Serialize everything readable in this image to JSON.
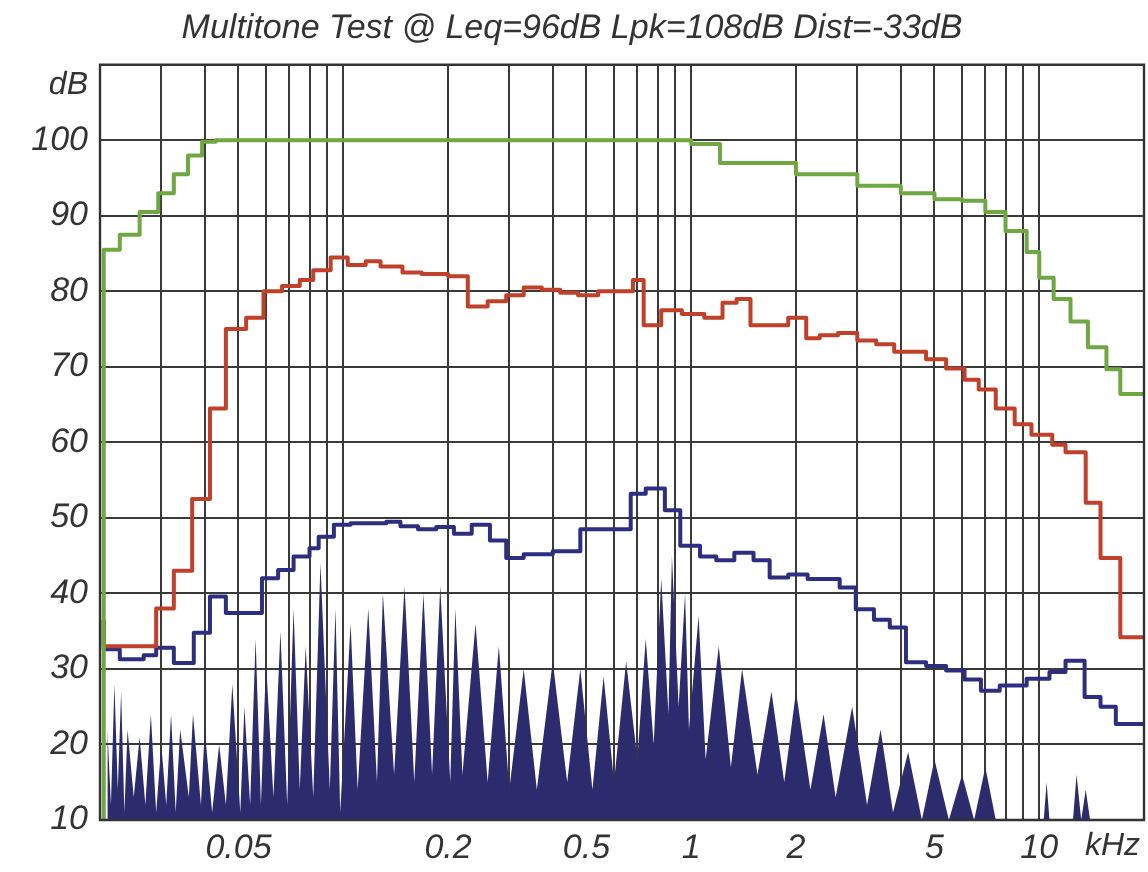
{
  "chart_data": {
    "type": "step",
    "title": "Multitone Test @ Leq=96dB Lpk=108dB Dist=-33dB",
    "xlabel": "kHz",
    "ylabel": "dB",
    "log": "x",
    "grid": true,
    "legend": false,
    "xlim": [
      0.02,
      20
    ],
    "ylim": [
      10,
      110
    ],
    "xticks": [
      {
        "value": 0.03,
        "label": null
      },
      {
        "value": 0.04,
        "label": null
      },
      0.05,
      {
        "value": 0.06,
        "label": null
      },
      {
        "value": 0.07,
        "label": null
      },
      {
        "value": 0.08,
        "label": null
      },
      {
        "value": 0.09,
        "label": null
      },
      {
        "value": 0.1,
        "label": null
      },
      0.2,
      {
        "value": 0.3,
        "label": null
      },
      {
        "value": 0.4,
        "label": null
      },
      0.5,
      {
        "value": 0.6,
        "label": null
      },
      {
        "value": 0.7,
        "label": null
      },
      {
        "value": 0.8,
        "label": null
      },
      {
        "value": 0.9,
        "label": null
      },
      1,
      2,
      {
        "value": 3,
        "label": null
      },
      {
        "value": 4,
        "label": null
      },
      5,
      {
        "value": 6,
        "label": null
      },
      {
        "value": 7,
        "label": null
      },
      {
        "value": 8,
        "label": null
      },
      {
        "value": 9,
        "label": null
      },
      10
    ],
    "yticks": [
      10,
      20,
      30,
      40,
      50,
      60,
      70,
      80,
      90,
      100
    ],
    "series": [
      {
        "color": "#6fa843",
        "x": [
          0.0205,
          0.0205,
          0.0228,
          0.026,
          0.0294,
          0.0326,
          0.0358,
          0.0393,
          0.043,
          0.0492,
          1.0,
          1.21,
          2.0,
          3.0,
          4.0,
          5.0,
          6.0,
          7.0,
          8.0,
          9.2,
          10,
          11,
          12.3,
          13.8,
          15.6,
          17.1,
          19.5,
          20
        ],
        "values": [
          10,
          83,
          85.5,
          87.5,
          90.5,
          93,
          95.5,
          98,
          99.8,
          100,
          100,
          99.5,
          97,
          95.5,
          94,
          93,
          92.2,
          92,
          90.5,
          88,
          85.2,
          81.8,
          79,
          76,
          72.6,
          69.7,
          66.4,
          66.4
        ]
      },
      {
        "color": "#c0402a",
        "x": [
          0.0205,
          0.0228,
          0.029,
          0.0326,
          0.0368,
          0.0414,
          0.046,
          0.0526,
          0.059,
          0.0667,
          0.075,
          0.082,
          0.092,
          0.103,
          0.116,
          0.128,
          0.148,
          0.168,
          0.2,
          0.228,
          0.26,
          0.294,
          0.33,
          0.372,
          0.42,
          0.473,
          0.54,
          0.68,
          0.73,
          0.82,
          0.94,
          1.09,
          1.23,
          1.35,
          1.48,
          1.9,
          2.14,
          2.34,
          2.64,
          3.0,
          3.4,
          3.83,
          4.73,
          5.4,
          6.1,
          6.7,
          7.5,
          8.5,
          9.5,
          10.9,
          11.9,
          13.6,
          15,
          17.1,
          19,
          20
        ],
        "values": [
          36.5,
          33,
          33,
          38,
          43,
          52.5,
          64.5,
          75,
          76.5,
          80,
          80.7,
          81.5,
          82.8,
          84.5,
          83.5,
          84,
          83.3,
          82.5,
          82.3,
          82,
          78,
          78.7,
          79.5,
          80.5,
          80.2,
          79.8,
          79.5,
          80,
          81.5,
          75.5,
          77.5,
          77,
          76.5,
          78.5,
          79,
          75.5,
          76.5,
          73.8,
          74.2,
          74.5,
          73.5,
          73,
          72,
          71,
          69.8,
          68.3,
          67,
          64.5,
          62.4,
          61,
          59.7,
          58.7,
          52,
          44.7,
          34.2,
          34.2
        ]
      },
      {
        "color": "#2e2e80",
        "x": [
          0.0205,
          0.0228,
          0.0267,
          0.029,
          0.0326,
          0.0372,
          0.0414,
          0.046,
          0.0584,
          0.065,
          0.072,
          0.08,
          0.085,
          0.094,
          0.105,
          0.133,
          0.146,
          0.164,
          0.185,
          0.208,
          0.234,
          0.264,
          0.294,
          0.33,
          0.4,
          0.48,
          0.67,
          0.74,
          0.84,
          0.93,
          1.06,
          1.18,
          1.33,
          1.51,
          1.68,
          1.9,
          2.16,
          2.67,
          2.97,
          3.35,
          3.72,
          4.14,
          4.73,
          5.4,
          6.1,
          6.8,
          7.7,
          9.2,
          10.7,
          11.9,
          13.5,
          15,
          16.6,
          18.7,
          20
        ],
        "values": [
          36.5,
          32.6,
          31.3,
          31.8,
          32.8,
          30.8,
          34.8,
          39.6,
          37.4,
          42,
          43.1,
          44.9,
          46,
          47.5,
          49.1,
          49.3,
          49.5,
          48.9,
          48.5,
          48.8,
          47.9,
          49.1,
          47,
          44.7,
          45.2,
          45.6,
          48.5,
          53.2,
          53.9,
          51,
          46.3,
          44.9,
          44.4,
          45.4,
          44.4,
          42.1,
          42.5,
          41.9,
          40.8,
          37.9,
          36.5,
          35.5,
          30.9,
          30.4,
          29.8,
          28.6,
          27.1,
          27.8,
          28.7,
          29.6,
          31.1,
          26.3,
          25,
          22.7,
          22.7
        ]
      },
      {
        "type": "area",
        "color": "#2b2b6e",
        "x": [
          0.021,
          0.0215,
          0.022,
          0.0225,
          0.023,
          0.0235,
          0.024,
          0.025,
          0.026,
          0.027,
          0.028,
          0.029,
          0.03,
          0.031,
          0.032,
          0.033,
          0.034,
          0.036,
          0.037,
          0.039,
          0.04,
          0.042,
          0.044,
          0.046,
          0.048,
          0.0506,
          0.052,
          0.054,
          0.056,
          0.058,
          0.06,
          0.063,
          0.066,
          0.069,
          0.072,
          0.075,
          0.078,
          0.082,
          0.086,
          0.0915,
          0.095,
          0.098,
          0.105,
          0.11,
          0.118,
          0.125,
          0.13,
          0.14,
          0.15,
          0.16,
          0.17,
          0.18,
          0.19,
          0.203,
          0.21,
          0.22,
          0.24,
          0.26,
          0.28,
          0.3,
          0.33,
          0.36,
          0.4,
          0.44,
          0.48,
          0.52,
          0.56,
          0.6,
          0.65,
          0.7,
          0.74,
          0.78,
          0.82,
          0.86,
          0.88,
          0.92,
          0.96,
          0.985,
          1.05,
          1.1,
          1.2,
          1.3,
          1.4,
          1.55,
          1.7,
          1.85,
          2.0,
          2.2,
          2.4,
          2.6,
          2.9,
          3.2,
          3.5,
          3.8,
          4.2,
          4.6,
          5.0,
          5.5,
          6.0,
          6.5,
          7.0,
          7.5,
          10.3,
          10.5,
          10.7,
          12.5,
          12.8,
          13.2,
          13.6,
          14
        ],
        "values": [
          22,
          12,
          28,
          14,
          27,
          11,
          22,
          13,
          21,
          12,
          24,
          11,
          20,
          12,
          24,
          11,
          22,
          13,
          24,
          12,
          22,
          11,
          20,
          12,
          28,
          11,
          25,
          12,
          34,
          12,
          31,
          13,
          35,
          12,
          38,
          14,
          33,
          13,
          44,
          14,
          38,
          11,
          36,
          14,
          38,
          15,
          40,
          16,
          41,
          15,
          40,
          16,
          41,
          15,
          38,
          16,
          36,
          15,
          33,
          14,
          30,
          14,
          31,
          15,
          30,
          14,
          29,
          15,
          31,
          18,
          34,
          20,
          42,
          24,
          45,
          25,
          40,
          22,
          37,
          18,
          33,
          17,
          30,
          16,
          27,
          15,
          27,
          14,
          24,
          13,
          25,
          12,
          22,
          11,
          19,
          10,
          18,
          10,
          16,
          10,
          17,
          10,
          10,
          15,
          10,
          10,
          16,
          10,
          14,
          10
        ]
      }
    ]
  }
}
